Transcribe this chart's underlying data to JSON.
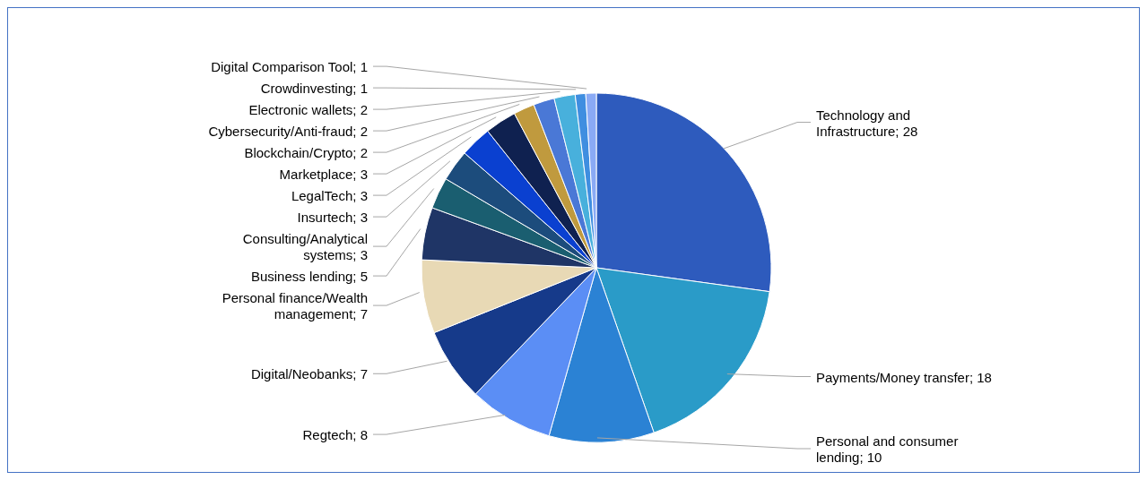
{
  "chart_data": {
    "type": "pie",
    "categories": [
      "Technology and Infrastructure; 28",
      "Payments/Money transfer; 18",
      "Personal and consumer lending; 10",
      "Regtech; 8",
      "Digital/Neobanks; 7",
      "Personal finance/Wealth management; 7",
      "Business lending; 5",
      "Consulting/Analytical systems; 3",
      "Insurtech; 3",
      "LegalTech; 3",
      "Marketplace; 3",
      "Blockchain/Crypto; 2",
      "Cybersecurity/Anti-fraud; 2",
      "Electronic wallets; 2",
      "Crowdinvesting; 1",
      "Digital Comparison Tool; 1"
    ],
    "values": [
      28,
      18,
      10,
      8,
      7,
      7,
      5,
      3,
      3,
      3,
      3,
      2,
      2,
      2,
      1,
      1
    ],
    "colors": [
      "#2e5bbd",
      "#2a9bc8",
      "#2b82d4",
      "#5b8ef5",
      "#163a8a",
      "#e8d9b5",
      "#1f3566",
      "#1a5e70",
      "#1c4c7c",
      "#0a40d0",
      "#0f2150",
      "#c09a3e",
      "#4a78d6",
      "#48b0dc",
      "#3f8ee0",
      "#8aaaf5"
    ]
  }
}
